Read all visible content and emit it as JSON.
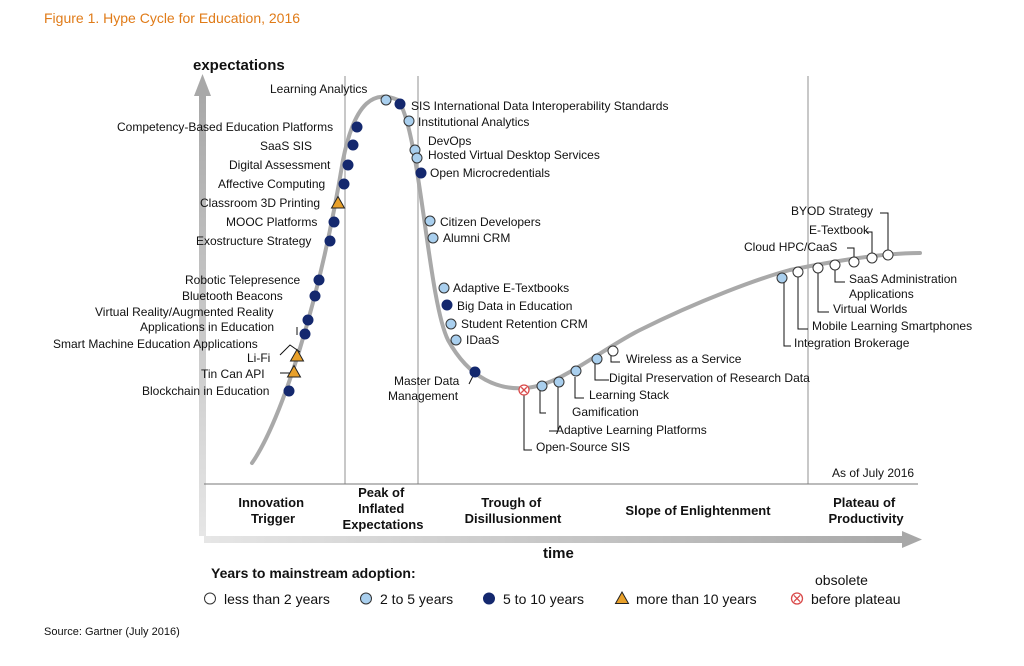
{
  "figure_title": "Figure 1. Hype Cycle for Education, 2016",
  "source": "Source: Gartner (July 2016)",
  "axes": {
    "y_label": "expectations",
    "x_label": "time"
  },
  "as_of": "As of July 2016",
  "phases": [
    {
      "lines": [
        "Innovation",
        "Trigger"
      ]
    },
    {
      "lines": [
        "Peak of",
        "Inflated",
        "Expectations"
      ]
    },
    {
      "lines": [
        "Trough of",
        "Disillusionment"
      ]
    },
    {
      "lines": [
        "Slope of Enlightenment"
      ]
    },
    {
      "lines": [
        "Plateau of",
        "Productivity"
      ]
    }
  ],
  "legend": {
    "title": "Years to mainstream adoption:",
    "items": [
      {
        "key": "lt2",
        "label": "less than 2 years"
      },
      {
        "key": "2to5",
        "label": "2 to 5 years"
      },
      {
        "key": "5to10",
        "label": "5 to 10 years"
      },
      {
        "key": "gt10",
        "label": "more than 10 years"
      },
      {
        "key": "obs",
        "label": "before plateau",
        "above": "obsolete"
      }
    ]
  },
  "colors": {
    "title": "#e07b18",
    "curve": "#a9a9a9",
    "dark": "#14286e",
    "light": "#a9cfee",
    "white": "#ffffff",
    "triangle": "#e8a02a",
    "obsolete": "#d94a4a"
  },
  "technologies": [
    {
      "name": "Learning Analytics",
      "status": "2to5"
    },
    {
      "name": "SIS International Data Interoperability Standards",
      "status": "5to10"
    },
    {
      "name": "Institutional Analytics",
      "status": "2to5"
    },
    {
      "name": "Competency-Based Education Platforms",
      "status": "5to10"
    },
    {
      "name": "SaaS SIS",
      "status": "5to10"
    },
    {
      "name": "DevOps",
      "status": "2to5"
    },
    {
      "name": "Hosted Virtual Desktop Services",
      "status": "2to5"
    },
    {
      "name": "Digital Assessment",
      "status": "5to10"
    },
    {
      "name": "Open Microcredentials",
      "status": "5to10"
    },
    {
      "name": "Affective Computing",
      "status": "5to10"
    },
    {
      "name": "Classroom 3D Printing",
      "status": "gt10"
    },
    {
      "name": "MOOC Platforms",
      "status": "5to10"
    },
    {
      "name": "Citizen Developers",
      "status": "2to5"
    },
    {
      "name": "Exostructure Strategy",
      "status": "5to10"
    },
    {
      "name": "Alumni CRM",
      "status": "2to5"
    },
    {
      "name": "Robotic Telepresence",
      "status": "5to10"
    },
    {
      "name": "Bluetooth Beacons",
      "status": "5to10"
    },
    {
      "name": "Virtual Reality/Augmented Reality Applications in Education",
      "status": "5to10"
    },
    {
      "name": "Smart Machine Education Applications",
      "status": "5to10"
    },
    {
      "name": "Li-Fi",
      "status": "gt10"
    },
    {
      "name": "Tin Can API",
      "status": "gt10"
    },
    {
      "name": "Blockchain in Education",
      "status": "5to10"
    },
    {
      "name": "Adaptive E-Textbooks",
      "status": "2to5"
    },
    {
      "name": "Big Data in Education",
      "status": "5to10"
    },
    {
      "name": "Student Retention CRM",
      "status": "2to5"
    },
    {
      "name": "IDaaS",
      "status": "2to5"
    },
    {
      "name": "Master Data Management",
      "status": "5to10"
    },
    {
      "name": "Open-Source SIS",
      "status": "obs"
    },
    {
      "name": "Adaptive Learning Platforms",
      "status": "2to5"
    },
    {
      "name": "Gamification",
      "status": "2to5"
    },
    {
      "name": "Learning Stack",
      "status": "2to5"
    },
    {
      "name": "Digital Preservation of Research Data",
      "status": "2to5"
    },
    {
      "name": "Wireless as a Service",
      "status": "lt2"
    },
    {
      "name": "Integration Brokerage",
      "status": "2to5"
    },
    {
      "name": "Mobile Learning Smartphones",
      "status": "lt2"
    },
    {
      "name": "Virtual Worlds",
      "status": "lt2"
    },
    {
      "name": "SaaS Administration Applications",
      "status": "lt2"
    },
    {
      "name": "Cloud HPC/CaaS",
      "status": "lt2"
    },
    {
      "name": "E-Textbook",
      "status": "lt2"
    },
    {
      "name": "BYOD Strategy",
      "status": "lt2"
    }
  ]
}
